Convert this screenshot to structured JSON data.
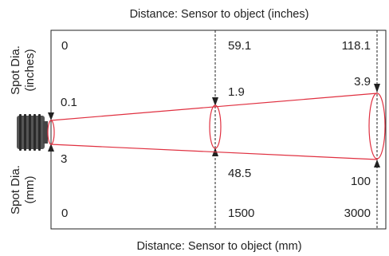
{
  "diagram": {
    "top_title": "Distance: Sensor to object (inches)",
    "bottom_title": "Distance: Sensor to object (mm)",
    "left_label_top": [
      "Spot Dia.",
      "(inches)"
    ],
    "left_label_bottom": [
      "Spot Dia.",
      "(mm)"
    ],
    "distance_inches": [
      "0",
      "59.1",
      "118.1"
    ],
    "spot_inches": [
      "0.1",
      "1.9",
      "3.9"
    ],
    "spot_mm": [
      "3",
      "48.5",
      "100"
    ],
    "distance_mm": [
      "0",
      "1500",
      "3000"
    ],
    "colors": {
      "beam": "#e03040",
      "frame": "#222222",
      "sensor": "#333333"
    }
  }
}
